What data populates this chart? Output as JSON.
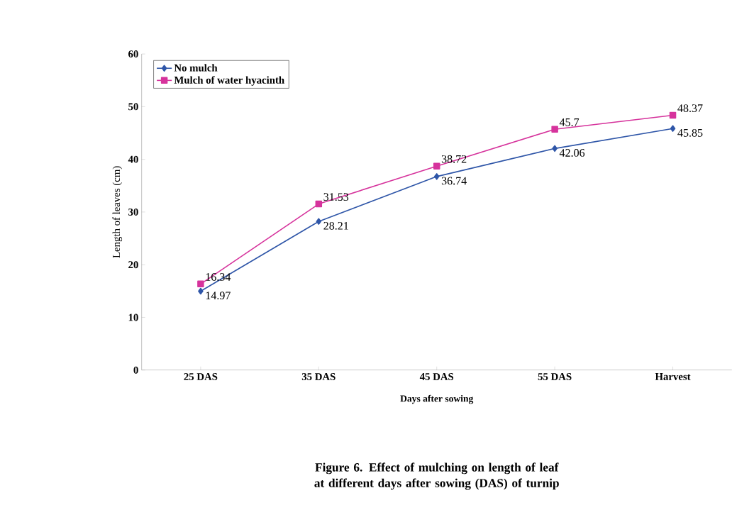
{
  "chart_data": {
    "type": "line",
    "title": "Figure 6. Effect of mulching on length of leaf at different days after sowing (DAS) of turnip",
    "xlabel": "Days after sowing",
    "ylabel": "Length of leaves (cm)",
    "categories": [
      "25 DAS",
      "35 DAS",
      "45 DAS",
      "55 DAS",
      "Harvest"
    ],
    "series": [
      {
        "name": "No mulch",
        "color": "#2f56a8",
        "marker": "diamond",
        "values": [
          14.97,
          28.21,
          36.74,
          42.06,
          45.85
        ]
      },
      {
        "name": "Mulch of water hyacinth",
        "color": "#d6339c",
        "marker": "square",
        "values": [
          16.34,
          31.53,
          38.72,
          45.7,
          48.37
        ]
      }
    ],
    "ylim": [
      0,
      60
    ],
    "yticks": [
      0,
      10,
      20,
      30,
      40,
      50,
      60
    ],
    "grid": false,
    "legend": "top left",
    "data_labels": true,
    "line_style": "solid"
  }
}
